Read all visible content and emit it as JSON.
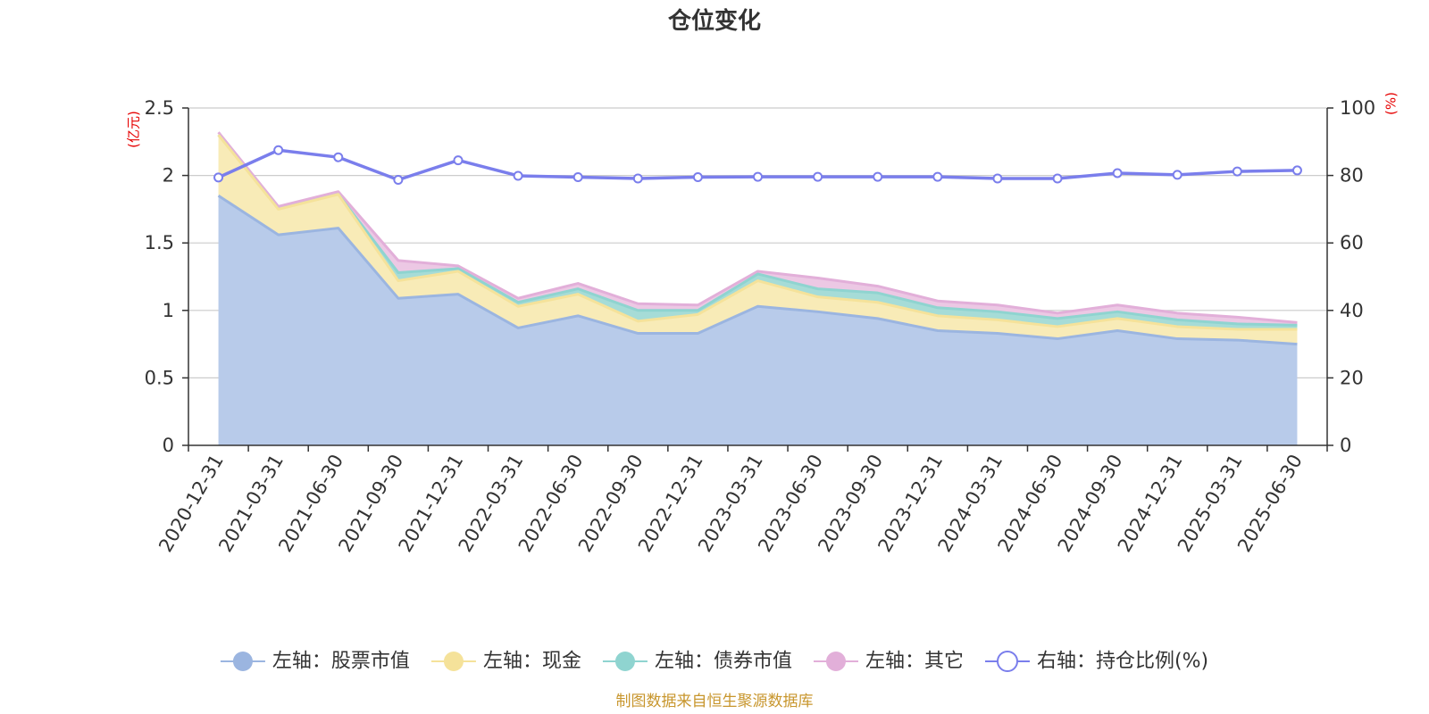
{
  "chart_data": {
    "type": "area",
    "title": "仓位变化",
    "left_axis_unit": "(亿元)",
    "right_axis_unit": "(%)",
    "left_ylim": [
      0,
      2.5
    ],
    "left_yticks": [
      "0",
      "0.5",
      "1",
      "1.5",
      "2",
      "2.5"
    ],
    "right_ylim": [
      0,
      100
    ],
    "right_yticks": [
      "0",
      "20",
      "40",
      "60",
      "80",
      "100"
    ],
    "grid": true,
    "legend_position": "bottom",
    "categories": [
      "2020-12-31",
      "2021-03-31",
      "2021-06-30",
      "2021-09-30",
      "2021-12-31",
      "2022-03-31",
      "2022-06-30",
      "2022-09-30",
      "2022-12-31",
      "2023-03-31",
      "2023-06-30",
      "2023-09-30",
      "2023-12-31",
      "2024-03-31",
      "2024-06-30",
      "2024-09-30",
      "2024-12-31",
      "2025-03-31",
      "2025-06-30"
    ],
    "series": [
      {
        "name": "左轴：股票市值",
        "axis": "left",
        "stack": true,
        "color": "#9bb5e0",
        "fill": "#b8cbea",
        "values": [
          1.85,
          1.56,
          1.61,
          1.09,
          1.12,
          0.87,
          0.96,
          0.83,
          0.83,
          1.03,
          0.99,
          0.94,
          0.85,
          0.83,
          0.79,
          0.85,
          0.79,
          0.78,
          0.75
        ]
      },
      {
        "name": "左轴：现金",
        "axis": "left",
        "stack": true,
        "color": "#f5e29a",
        "fill": "#f8ebb7",
        "values": [
          0.45,
          0.19,
          0.25,
          0.13,
          0.17,
          0.16,
          0.16,
          0.09,
          0.14,
          0.19,
          0.11,
          0.12,
          0.11,
          0.1,
          0.09,
          0.09,
          0.09,
          0.08,
          0.11
        ]
      },
      {
        "name": "左轴：债券市值",
        "axis": "left",
        "stack": true,
        "color": "#8fd4d0",
        "fill": "#a6dcd7",
        "values": [
          0,
          0,
          0,
          0.06,
          0.02,
          0.03,
          0.04,
          0.08,
          0.03,
          0.05,
          0.06,
          0.07,
          0.06,
          0.06,
          0.06,
          0.05,
          0.05,
          0.04,
          0.03
        ]
      },
      {
        "name": "左轴：其它",
        "axis": "left",
        "stack": true,
        "color": "#e2afd9",
        "fill": "#ecc8e4",
        "values": [
          0.02,
          0.02,
          0.02,
          0.09,
          0.02,
          0.03,
          0.04,
          0.05,
          0.04,
          0.02,
          0.08,
          0.05,
          0.05,
          0.05,
          0.04,
          0.05,
          0.05,
          0.05,
          0.02
        ]
      },
      {
        "name": "右轴：持仓比例(%)",
        "axis": "right",
        "stack": false,
        "color": "#7a7eec",
        "values": [
          79.4,
          87.5,
          85.4,
          78.7,
          84.5,
          79.9,
          79.5,
          79.1,
          79.5,
          79.6,
          79.6,
          79.6,
          79.6,
          79.1,
          79.1,
          80.7,
          80.2,
          81.2,
          81.5
        ]
      }
    ]
  },
  "source_text": "制图数据来自恒生聚源数据库"
}
